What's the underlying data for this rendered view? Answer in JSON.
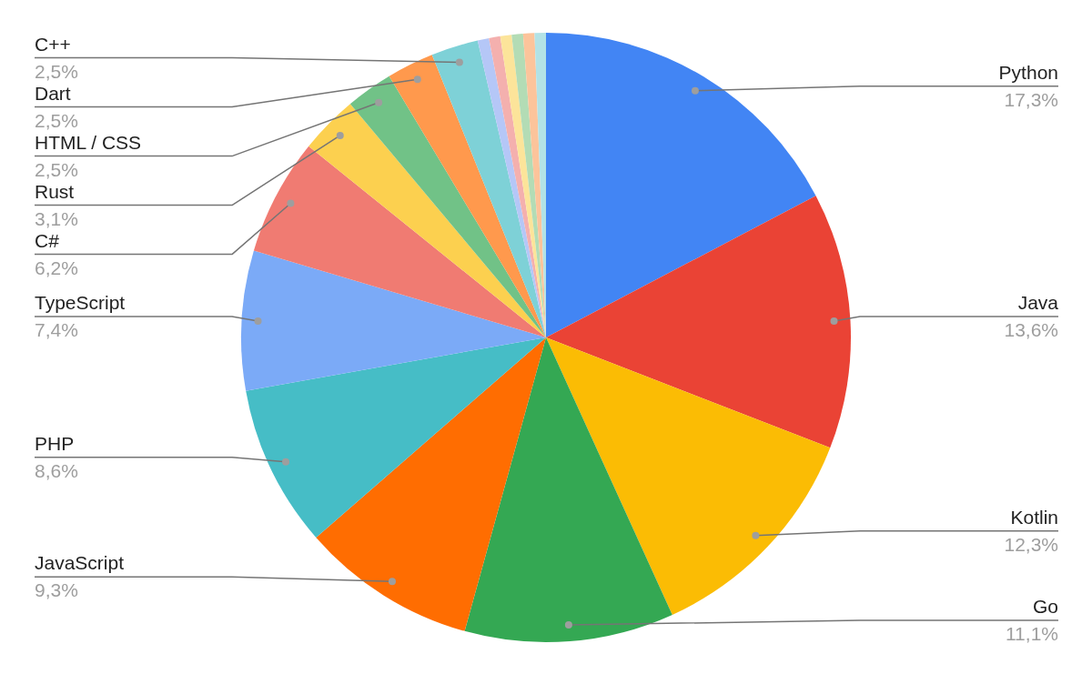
{
  "chart_data": {
    "type": "pie",
    "categories": [
      "Python",
      "Java",
      "Kotlin",
      "Go",
      "JavaScript",
      "PHP",
      "TypeScript",
      "C#",
      "Rust",
      "HTML / CSS",
      "Dart",
      "C++",
      null,
      null,
      null,
      null,
      null,
      null
    ],
    "values": [
      17.3,
      13.6,
      12.3,
      11.1,
      9.3,
      8.6,
      7.4,
      6.2,
      3.1,
      2.5,
      2.5,
      2.5,
      0.6,
      0.6,
      0.6,
      0.6,
      0.6,
      0.6
    ],
    "colors": [
      "#4285f4",
      "#ea4335",
      "#fbbc04",
      "#34a853",
      "#ff6d01",
      "#46bdc6",
      "#7baaf7",
      "#f07b72",
      "#fcd04f",
      "#71c287",
      "#ff994d",
      "#7ed1d7",
      "#b5c7f7",
      "#f4b0ae",
      "#fce49a",
      "#b3dcb5",
      "#fcc49b",
      "#b2e2e6"
    ],
    "value_labels": [
      "17,3%",
      "13,6%",
      "12,3%",
      "11,1%",
      "9,3%",
      "8,6%",
      "7,4%",
      "6,2%",
      "3,1%",
      "2,5%",
      "2,5%",
      "2,5%",
      null,
      null,
      null,
      null,
      null,
      null
    ],
    "legend": false
  }
}
